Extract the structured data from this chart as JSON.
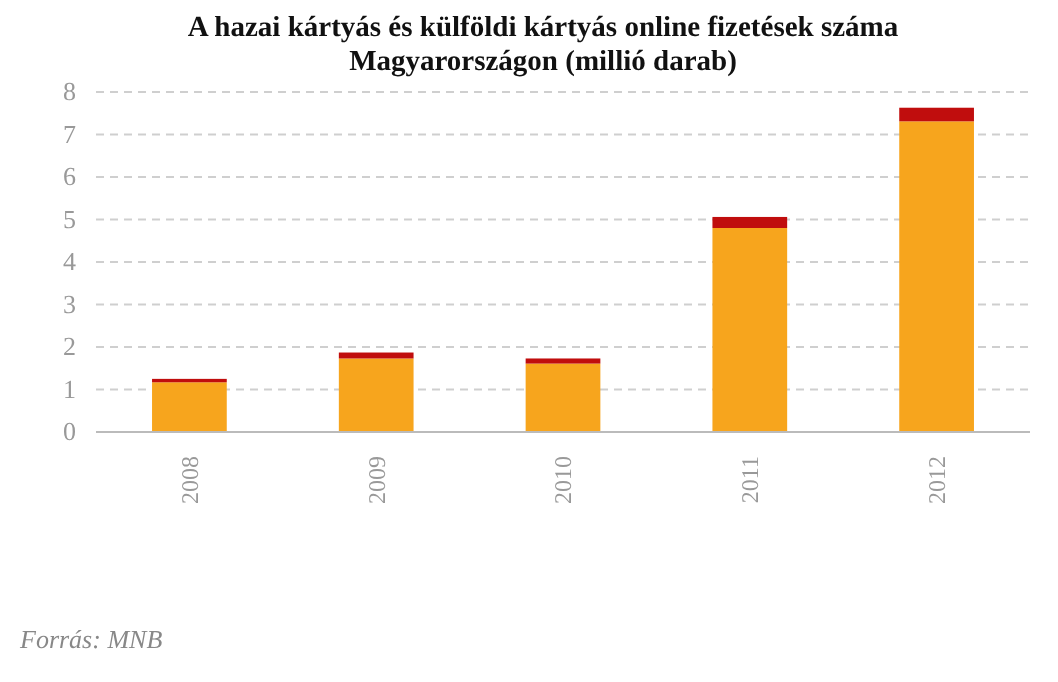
{
  "chart_data": {
    "type": "bar",
    "title": "A hazai kártyás és külföldi kártyás online fizetések száma Magyarországon (millió darab)",
    "categories": [
      "2008",
      "2009",
      "2010",
      "2011",
      "2012"
    ],
    "stacked": true,
    "series": [
      {
        "color": "#f7a51d",
        "values": [
          1.17,
          1.73,
          1.61,
          4.8,
          7.31
        ]
      },
      {
        "color": "#c00d0d",
        "values": [
          0.08,
          0.14,
          0.12,
          0.26,
          0.32
        ]
      }
    ],
    "ylim": [
      0,
      8
    ],
    "yticks": [
      0,
      1,
      2,
      3,
      4,
      5,
      6,
      7,
      8
    ],
    "grid": "y",
    "annotations": [
      "Forrás: MNB"
    ]
  }
}
